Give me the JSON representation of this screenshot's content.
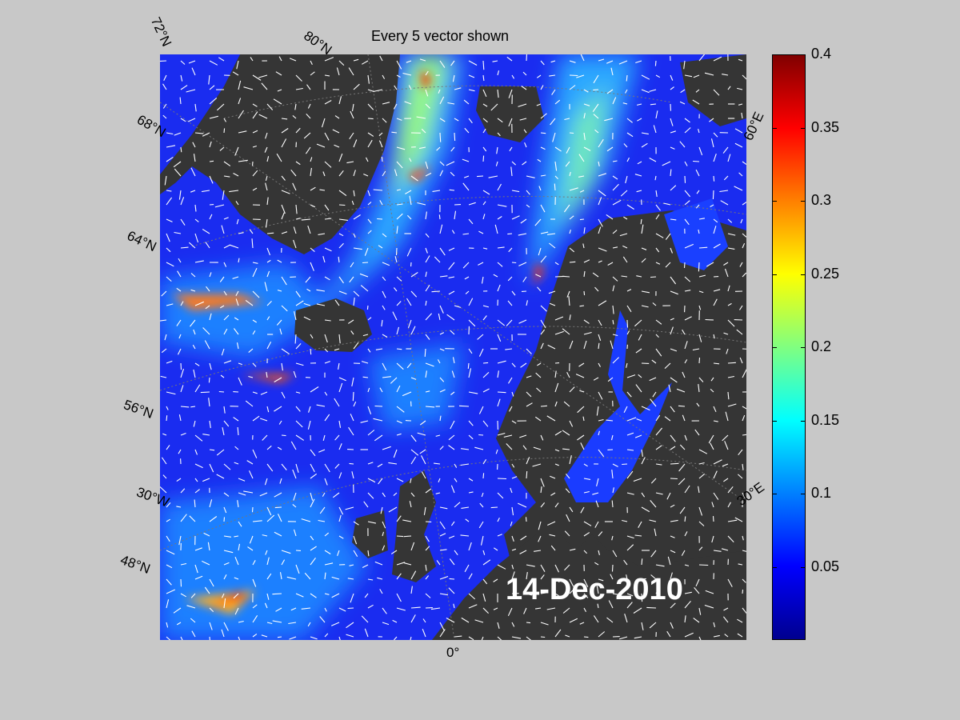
{
  "map": {
    "title": "Every 5 vector shown",
    "date": "14-Dec-2010",
    "colors": {
      "land": "#353535",
      "background": "#c8c8c8",
      "ice": "#7a7a7a",
      "vectors": "#ffffff"
    },
    "lat_labels": [
      "72°N",
      "80°N",
      "68°N",
      "64°N",
      "56°N",
      "48°N"
    ],
    "lon_labels": [
      "30°W",
      "0°",
      "30°E",
      "60°E"
    ]
  },
  "colorbar": {
    "range": [
      0,
      0.4
    ],
    "ticks": [
      "0.05",
      "0.1",
      "0.15",
      "0.2",
      "0.25",
      "0.3",
      "0.35",
      "0.4"
    ],
    "colormap": [
      "#00008f",
      "#0000ff",
      "#0080ff",
      "#00ffff",
      "#80ff80",
      "#ffff00",
      "#ff8000",
      "#ff0000",
      "#800000"
    ]
  }
}
